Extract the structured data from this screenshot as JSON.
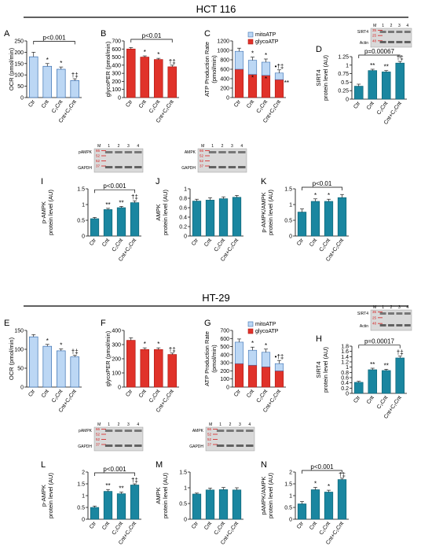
{
  "sections": [
    {
      "title": "HCT 116"
    },
    {
      "title": "HT-29"
    }
  ],
  "colors": {
    "blue_fill": "#bcd7f4",
    "blue_stroke": "#3b6fb0",
    "red": "#e0322a",
    "teal": "#1a86a0",
    "gel_bg": "#d9d9d9",
    "marker_red": "#d62020"
  },
  "categories": [
    "Ctr",
    "Cnt",
    "C₂Cnt",
    "Cnt+C₂Cnt"
  ],
  "gel_lanes": [
    "M",
    "1",
    "2",
    "3",
    "4"
  ],
  "chart_data": [
    {
      "panel": "A",
      "type": "bar",
      "color": "blue",
      "ylabel": "OCR (pmol/min)",
      "ylim": [
        0,
        250
      ],
      "yticks": [
        0,
        50,
        100,
        150,
        200,
        250
      ],
      "values": [
        180,
        138,
        125,
        75
      ],
      "errors": [
        20,
        12,
        10,
        8
      ],
      "stars": [
        "",
        "*",
        "*",
        "†‡"
      ],
      "bracket": "p<0.001"
    },
    {
      "panel": "B",
      "type": "bar",
      "color": "red",
      "ylabel": "glycoPER (pmol/min)",
      "ylim": [
        0,
        700
      ],
      "yticks": [
        0,
        100,
        200,
        300,
        400,
        500,
        600,
        700
      ],
      "values": [
        600,
        500,
        470,
        380
      ],
      "errors": [
        18,
        15,
        15,
        20
      ],
      "stars": [
        "",
        "*",
        "*",
        "†‡"
      ],
      "bracket": "p<0.01"
    },
    {
      "panel": "C",
      "type": "stacked-bar",
      "ylabel": "ATP Production Rate (pmol/min)",
      "ylim": [
        0,
        1200
      ],
      "yticks": [
        0,
        200,
        400,
        600,
        800,
        1000,
        1200
      ],
      "series": [
        {
          "name": "glycoATP",
          "values": [
            600,
            490,
            470,
            380
          ]
        },
        {
          "name": "mitoATP",
          "values": [
            380,
            300,
            280,
            140
          ]
        }
      ],
      "stars_top": [
        "",
        "*",
        "*",
        "•†‡"
      ],
      "stars_in": [
        "",
        "*",
        "*",
        "**"
      ]
    },
    {
      "panel": "D",
      "type": "bar",
      "color": "teal",
      "ylabel": "SIRT4 protein level (AU)",
      "ylim": [
        0,
        1.25
      ],
      "yticks": [
        0,
        0.25,
        0.5,
        0.75,
        1,
        1.25
      ],
      "values": [
        0.38,
        0.84,
        0.8,
        1.06
      ],
      "errors": [
        0.06,
        0.04,
        0.04,
        0.05
      ],
      "stars": [
        "",
        "**",
        "**",
        "†‡"
      ],
      "bracket": "p=0.00067",
      "blot_labels": [
        "SIRT4",
        "Actin"
      ],
      "blot_mw": [
        "35",
        "25",
        "48"
      ]
    },
    {
      "panel": "I",
      "type": "bar",
      "color": "teal",
      "ylabel": "p-AMPK protein level (AU)",
      "ylim": [
        0,
        1.5
      ],
      "yticks": [
        0,
        0.5,
        1.0,
        1.5
      ],
      "values": [
        0.55,
        0.84,
        0.9,
        1.06
      ],
      "errors": [
        0.04,
        0.04,
        0.04,
        0.06
      ],
      "stars": [
        "",
        "**",
        "**",
        "†‡"
      ],
      "bracket": "p<0.001",
      "blot_labels": [
        "pAMPK",
        "GAPDH"
      ],
      "blot_mw": [
        "66",
        "52",
        "52",
        "37"
      ]
    },
    {
      "panel": "J",
      "type": "bar",
      "color": "teal",
      "ylabel": "AMPK protein level (AU)",
      "ylim": [
        0,
        1.0
      ],
      "yticks": [
        0,
        0.2,
        0.4,
        0.6,
        0.8,
        1.0
      ],
      "values": [
        0.74,
        0.76,
        0.79,
        0.82
      ],
      "errors": [
        0.04,
        0.05,
        0.04,
        0.04
      ],
      "stars": [
        "",
        "",
        "",
        ""
      ],
      "blot_labels": [
        "AMPK",
        "GAPDH"
      ],
      "blot_mw": [
        "66",
        "52",
        "52",
        "37"
      ]
    },
    {
      "panel": "K",
      "type": "bar",
      "color": "teal",
      "ylabel": "p-AMPK/AMPK protein level (AU)",
      "ylim": [
        0,
        1.5
      ],
      "yticks": [
        0,
        0.5,
        1.0,
        1.5
      ],
      "values": [
        0.76,
        1.1,
        1.1,
        1.22
      ],
      "errors": [
        0.1,
        0.08,
        0.07,
        0.1
      ],
      "stars": [
        "",
        "*",
        "*",
        ""
      ],
      "bracket": "p<0.01"
    },
    {
      "panel": "E",
      "type": "bar",
      "color": "blue",
      "ylabel": "OCR (pmol/min)",
      "ylim": [
        0,
        150
      ],
      "yticks": [
        0,
        50,
        100,
        150
      ],
      "values": [
        133,
        108,
        96,
        80
      ],
      "errors": [
        6,
        5,
        5,
        4
      ],
      "stars": [
        "",
        "*",
        "*",
        "†‡"
      ]
    },
    {
      "panel": "F",
      "type": "bar",
      "color": "red",
      "ylabel": "glycoPER (pmol/min)",
      "ylim": [
        0,
        400
      ],
      "yticks": [
        0,
        100,
        200,
        300,
        400
      ],
      "values": [
        330,
        265,
        265,
        230
      ],
      "errors": [
        18,
        12,
        12,
        10
      ],
      "stars": [
        "",
        "*",
        "*",
        "†‡"
      ]
    },
    {
      "panel": "G",
      "type": "stacked-bar",
      "ylabel": "ATP Production Rate (pmol/min)",
      "ylim": [
        0,
        700
      ],
      "yticks": [
        0,
        100,
        200,
        300,
        400,
        500,
        600,
        700
      ],
      "series": [
        {
          "name": "glycoATP",
          "values": [
            290,
            270,
            250,
            200
          ]
        },
        {
          "name": "mitoATP",
          "values": [
            265,
            185,
            180,
            90
          ]
        }
      ],
      "stars_top": [
        "",
        "*",
        "*",
        "•†‡"
      ],
      "stars_in": [
        "",
        "",
        "",
        ""
      ]
    },
    {
      "panel": "H",
      "type": "bar",
      "color": "teal",
      "ylabel": "SIRT4 protein level (AU)",
      "ylim": [
        0,
        1.8
      ],
      "yticks": [
        0,
        0.2,
        0.4,
        0.6,
        0.8,
        1.0,
        1.2,
        1.4,
        1.6,
        1.8
      ],
      "values": [
        0.42,
        0.9,
        0.87,
        1.35
      ],
      "errors": [
        0.04,
        0.06,
        0.05,
        0.07
      ],
      "stars": [
        "",
        "**",
        "**",
        "†‡"
      ],
      "bracket": "p=0.00017",
      "blot_labels": [
        "SIRT4",
        "Actin"
      ],
      "blot_mw": [
        "35",
        "25",
        "48"
      ]
    },
    {
      "panel": "L",
      "type": "bar",
      "color": "teal",
      "ylabel": "p-AMPK protein level (AU)",
      "ylim": [
        0,
        2.0
      ],
      "yticks": [
        0,
        0.5,
        1.0,
        1.5,
        2.0
      ],
      "values": [
        0.5,
        1.18,
        1.08,
        1.45
      ],
      "errors": [
        0.06,
        0.08,
        0.07,
        0.05
      ],
      "stars": [
        "",
        "**",
        "**",
        "†‡"
      ],
      "bracket": "p<0.001",
      "blot_labels": [
        "pAMPK",
        "GAPDH"
      ],
      "blot_mw": [
        "66",
        "52",
        "52",
        "37"
      ]
    },
    {
      "panel": "M",
      "type": "bar",
      "color": "teal",
      "ylabel": "AMPK protein level (AU)",
      "ylim": [
        0,
        1.5
      ],
      "yticks": [
        0,
        0.5,
        1.0,
        1.5
      ],
      "values": [
        0.8,
        0.93,
        0.94,
        0.93
      ],
      "errors": [
        0.03,
        0.06,
        0.07,
        0.07
      ],
      "stars": [
        "",
        "",
        "",
        ""
      ],
      "blot_labels": [
        "AMPK",
        "GAPDH"
      ],
      "blot_mw": [
        "66",
        "52",
        "52",
        "37"
      ]
    },
    {
      "panel": "N",
      "type": "bar",
      "color": "teal",
      "ylabel": "pAMPK/AMPK protein level (AU)",
      "ylim": [
        0,
        2.0
      ],
      "yticks": [
        0,
        0.5,
        1.0,
        1.5,
        2.0
      ],
      "values": [
        0.65,
        1.25,
        1.15,
        1.68
      ],
      "errors": [
        0.1,
        0.1,
        0.08,
        0.06
      ],
      "stars": [
        "",
        "*",
        "*",
        "†‡"
      ],
      "bracket": "p<0.001"
    }
  ]
}
